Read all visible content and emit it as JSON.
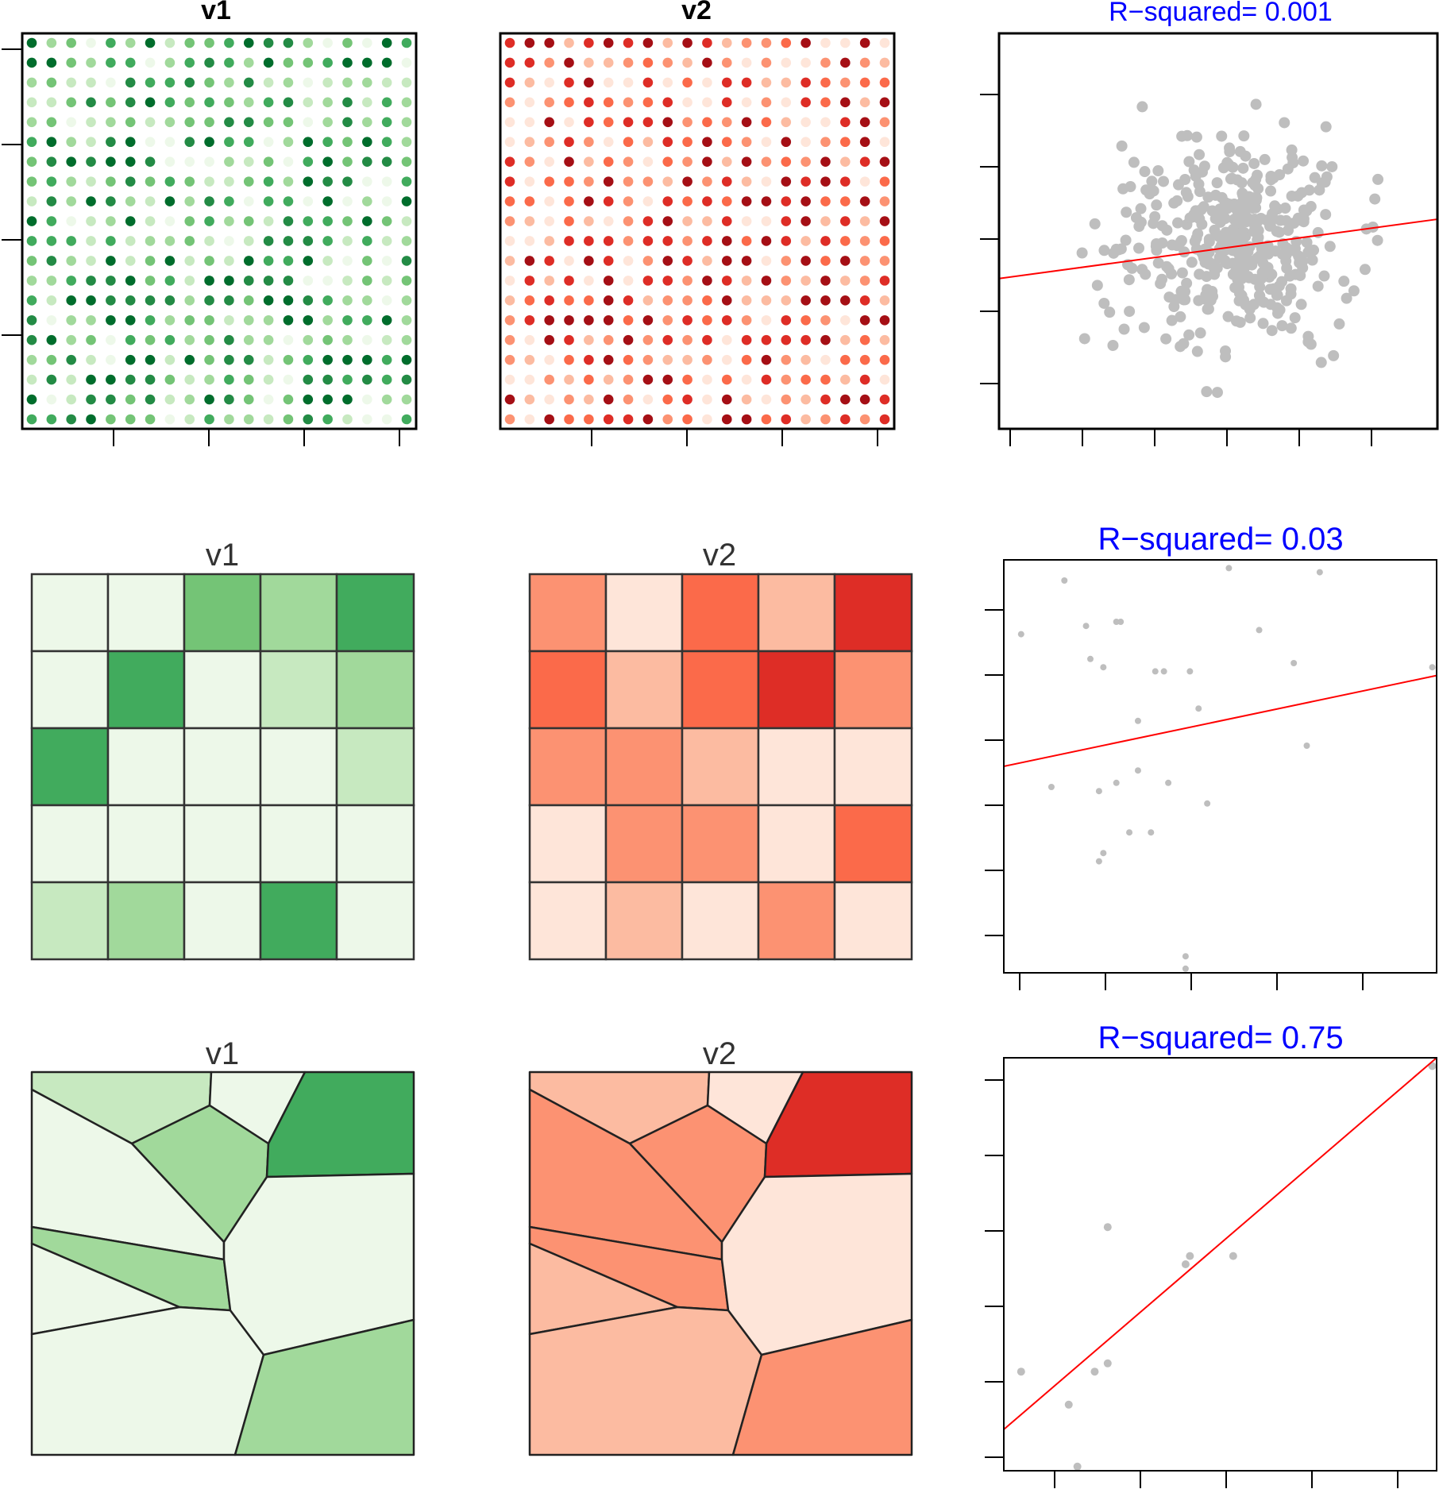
{
  "colors": {
    "greens": [
      "#edf8e9",
      "#c7e9c0",
      "#a1d99b",
      "#74c476",
      "#41ab5d",
      "#238b45",
      "#006d2c"
    ],
    "reds": [
      "#fee5d9",
      "#fcbba1",
      "#fc9272",
      "#fb6a4a",
      "#de2d26",
      "#a50f15"
    ],
    "scatter_point": "#bebebe",
    "fit_line": "#ff0000",
    "r_title": "#0000ff"
  },
  "chart_data": [
    {
      "type": "heatmap",
      "title": "v1",
      "variable": "v1",
      "palette": "greens",
      "layout": "point-grid",
      "grid_size": [
        20,
        20
      ],
      "ticks": {
        "x": 4,
        "y": 4
      }
    },
    {
      "type": "heatmap",
      "title": "v2",
      "variable": "v2",
      "palette": "reds",
      "layout": "point-grid",
      "grid_size": [
        20,
        20
      ],
      "ticks": {
        "x": 4,
        "y": 0
      }
    },
    {
      "type": "scatter",
      "title": "R−squared= 0.001",
      "r_squared": 0.001,
      "n_points": 400,
      "point_color": "#bebebe",
      "fit_line": {
        "color": "#ff0000",
        "left_y_frac": 0.38,
        "right_y_frac": 0.53
      },
      "ticks": {
        "x": 6,
        "y": 5
      }
    },
    {
      "type": "heatmap",
      "title": "v1",
      "variable": "v1",
      "palette": "greens",
      "layout": "cell-grid",
      "grid_size": [
        5,
        5
      ],
      "levels": [
        [
          0,
          0,
          3,
          2,
          4
        ],
        [
          0,
          4,
          0,
          1,
          2
        ],
        [
          4,
          0,
          0,
          0,
          1
        ],
        [
          0,
          0,
          0,
          0,
          0
        ],
        [
          1,
          2,
          0,
          4,
          0
        ]
      ]
    },
    {
      "type": "heatmap",
      "title": "v2",
      "variable": "v2",
      "palette": "reds",
      "layout": "cell-grid",
      "grid_size": [
        5,
        5
      ],
      "levels": [
        [
          2,
          0,
          3,
          1,
          4
        ],
        [
          3,
          1,
          3,
          4,
          2
        ],
        [
          2,
          2,
          1,
          0,
          0
        ],
        [
          0,
          2,
          2,
          0,
          3
        ],
        [
          0,
          1,
          0,
          2,
          0
        ]
      ]
    },
    {
      "type": "scatter",
      "title": "R−squared= 0.03",
      "r_squared": 0.03,
      "point_color": "#bebebe",
      "points": [
        [
          0.04,
          0.82
        ],
        [
          0.11,
          0.45
        ],
        [
          0.14,
          0.95
        ],
        [
          0.19,
          0.84
        ],
        [
          0.2,
          0.76
        ],
        [
          0.22,
          0.44
        ],
        [
          0.23,
          0.74
        ],
        [
          0.26,
          0.85
        ],
        [
          0.27,
          0.85
        ],
        [
          0.31,
          0.49
        ],
        [
          0.31,
          0.61
        ],
        [
          0.26,
          0.46
        ],
        [
          0.29,
          0.34
        ],
        [
          0.35,
          0.73
        ],
        [
          0.37,
          0.73
        ],
        [
          0.38,
          0.46
        ],
        [
          0.34,
          0.34
        ],
        [
          0.42,
          0.04
        ],
        [
          0.43,
          0.73
        ],
        [
          0.45,
          0.64
        ],
        [
          0.47,
          0.41
        ],
        [
          0.42,
          0.01
        ],
        [
          0.52,
          0.98
        ],
        [
          0.59,
          0.83
        ],
        [
          0.67,
          0.75
        ],
        [
          0.7,
          0.55
        ],
        [
          0.73,
          0.97
        ],
        [
          0.99,
          0.74
        ],
        [
          0.23,
          0.29
        ],
        [
          0.22,
          0.27
        ]
      ],
      "fit_line": {
        "color": "#ff0000",
        "left_y_frac": 0.5,
        "right_y_frac": 0.72
      },
      "ticks": {
        "x": 5,
        "y": 6
      }
    },
    {
      "type": "heatmap",
      "title": "v1",
      "variable": "v1",
      "palette": "greens",
      "layout": "polygons",
      "levels": [
        1,
        0,
        2,
        4,
        0,
        2,
        0,
        0,
        0,
        2
      ]
    },
    {
      "type": "heatmap",
      "title": "v2",
      "variable": "v2",
      "palette": "reds",
      "layout": "polygons",
      "levels": [
        1,
        0,
        2,
        4,
        2,
        2,
        1,
        1,
        0,
        2
      ]
    },
    {
      "type": "scatter",
      "title": "R−squared= 0.75",
      "r_squared": 0.75,
      "point_color": "#bebebe",
      "points": [
        [
          0.04,
          0.24
        ],
        [
          0.15,
          0.16
        ],
        [
          0.17,
          0.01
        ],
        [
          0.21,
          0.24
        ],
        [
          0.24,
          0.26
        ],
        [
          0.24,
          0.59
        ],
        [
          0.42,
          0.5
        ],
        [
          0.43,
          0.52
        ],
        [
          0.53,
          0.52
        ],
        [
          0.99,
          0.98
        ]
      ],
      "fit_line": {
        "color": "#ff0000",
        "left_y_frac": 0.1,
        "right_y_frac": 1.0
      },
      "ticks": {
        "x": 5,
        "y": 6
      }
    }
  ]
}
